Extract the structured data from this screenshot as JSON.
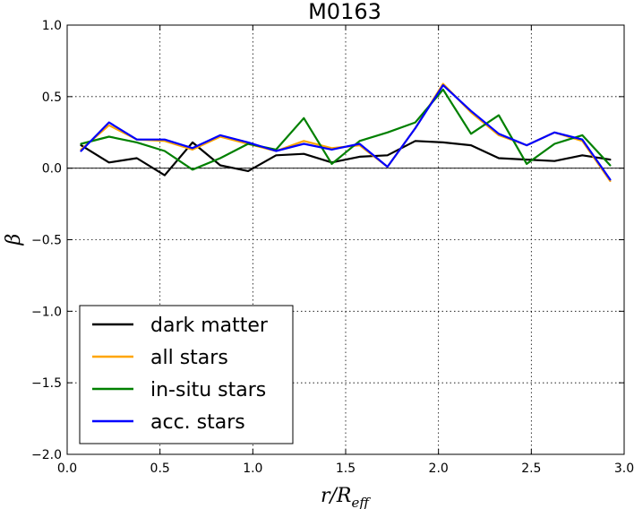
{
  "chart_data": {
    "type": "line",
    "title": "M0163",
    "xlabel": "r/R",
    "xlabel_sub": "eff",
    "ylabel": "β",
    "xlim": [
      0.0,
      3.0
    ],
    "ylim": [
      -2.0,
      1.0
    ],
    "xticks": [
      0.0,
      0.5,
      1.0,
      1.5,
      2.0,
      2.5,
      3.0
    ],
    "xtick_labels": [
      "0.0",
      "0.5",
      "1.0",
      "1.5",
      "2.0",
      "2.5",
      "3.0"
    ],
    "yticks": [
      -2.0,
      -1.5,
      -1.0,
      -0.5,
      0.0,
      0.5,
      1.0
    ],
    "ytick_labels": [
      "−2.0",
      "−1.5",
      "−1.0",
      "−0.5",
      "0.0",
      "0.5",
      "1.0"
    ],
    "grid": true,
    "zero_line": true,
    "legend_position": "lower-left",
    "x": [
      0.075,
      0.225,
      0.375,
      0.525,
      0.675,
      0.825,
      0.975,
      1.125,
      1.275,
      1.425,
      1.575,
      1.725,
      1.875,
      2.025,
      2.175,
      2.325,
      2.475,
      2.625,
      2.775,
      2.925
    ],
    "series": [
      {
        "name": "dark matter",
        "color": "#000000",
        "values": [
          0.16,
          0.04,
          0.07,
          -0.05,
          0.18,
          0.02,
          -0.02,
          0.09,
          0.1,
          0.04,
          0.08,
          0.09,
          0.19,
          0.18,
          0.16,
          0.07,
          0.06,
          0.05,
          0.09,
          0.06
        ]
      },
      {
        "name": "all stars",
        "color": "#ffa500",
        "values": [
          0.13,
          0.3,
          0.2,
          0.19,
          0.13,
          0.22,
          0.17,
          0.12,
          0.19,
          0.14,
          0.16,
          0.01,
          0.28,
          0.59,
          0.39,
          0.23,
          0.16,
          0.25,
          0.19,
          -0.09
        ]
      },
      {
        "name": "in-situ stars",
        "color": "#008000",
        "values": [
          0.17,
          0.22,
          0.18,
          0.12,
          -0.01,
          0.07,
          0.17,
          0.13,
          0.35,
          0.03,
          0.19,
          0.25,
          0.32,
          0.55,
          0.24,
          0.37,
          0.03,
          0.17,
          0.23,
          0.02
        ]
      },
      {
        "name": "acc. stars",
        "color": "#0000ff",
        "values": [
          0.12,
          0.32,
          0.2,
          0.2,
          0.14,
          0.23,
          0.18,
          0.12,
          0.17,
          0.13,
          0.17,
          0.01,
          0.28,
          0.58,
          0.4,
          0.24,
          0.16,
          0.25,
          0.2,
          -0.08
        ]
      }
    ]
  }
}
